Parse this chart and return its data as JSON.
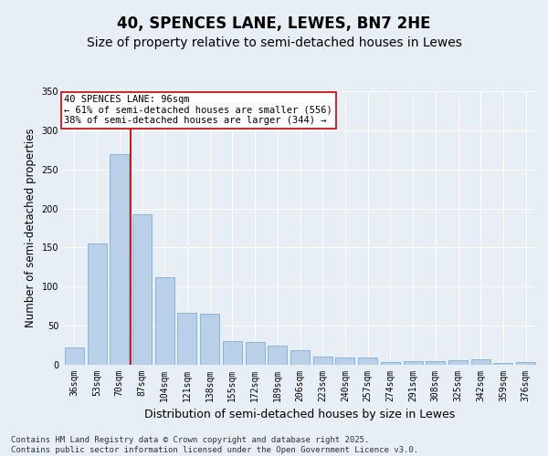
{
  "title": "40, SPENCES LANE, LEWES, BN7 2HE",
  "subtitle": "Size of property relative to semi-detached houses in Lewes",
  "xlabel": "Distribution of semi-detached houses by size in Lewes",
  "ylabel": "Number of semi-detached properties",
  "categories": [
    "36sqm",
    "53sqm",
    "70sqm",
    "87sqm",
    "104sqm",
    "121sqm",
    "138sqm",
    "155sqm",
    "172sqm",
    "189sqm",
    "206sqm",
    "223sqm",
    "240sqm",
    "257sqm",
    "274sqm",
    "291sqm",
    "308sqm",
    "325sqm",
    "342sqm",
    "359sqm",
    "376sqm"
  ],
  "values": [
    22,
    155,
    270,
    193,
    112,
    66,
    65,
    30,
    29,
    24,
    19,
    11,
    9,
    9,
    4,
    5,
    5,
    6,
    7,
    2,
    3
  ],
  "bar_color": "#bad0e8",
  "bar_edge_color": "#7aafd4",
  "highlight_bar_index": 3,
  "highlight_line_color": "#cc0000",
  "annotation_text": "40 SPENCES LANE: 96sqm\n← 61% of semi-detached houses are smaller (556)\n38% of semi-detached houses are larger (344) →",
  "annotation_box_facecolor": "#ffffff",
  "annotation_box_edgecolor": "#cc0000",
  "ylim": [
    0,
    350
  ],
  "yticks": [
    0,
    50,
    100,
    150,
    200,
    250,
    300,
    350
  ],
  "fig_bg_color": "#e8eef5",
  "axes_bg_color": "#e8eef5",
  "grid_color": "#ffffff",
  "title_fontsize": 12,
  "subtitle_fontsize": 10,
  "ylabel_fontsize": 8.5,
  "xlabel_fontsize": 9,
  "tick_fontsize": 7,
  "annotation_fontsize": 7.5,
  "footer_fontsize": 6.5,
  "footer_text": "Contains HM Land Registry data © Crown copyright and database right 2025.\nContains public sector information licensed under the Open Government Licence v3.0."
}
